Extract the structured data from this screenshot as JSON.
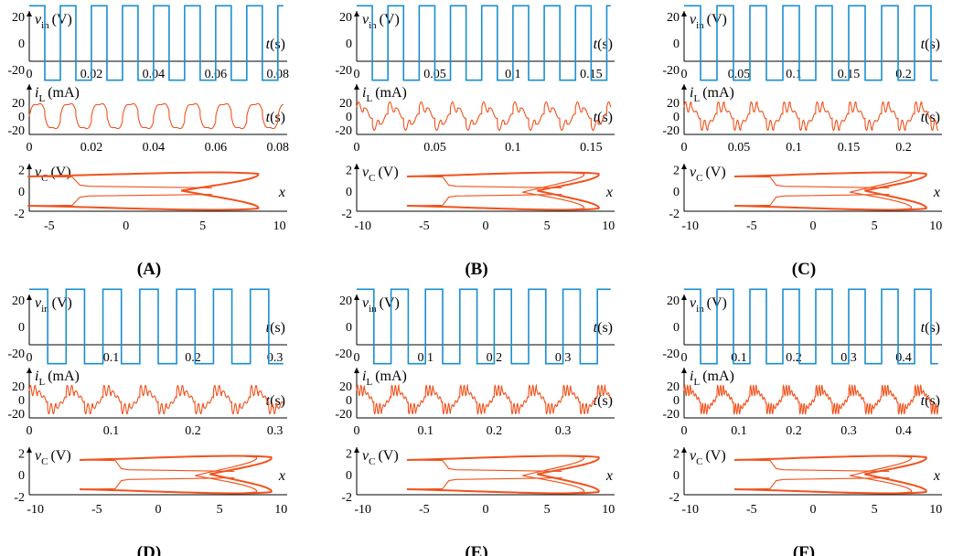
{
  "colors": {
    "vin": "#1a8fd0",
    "iL": "#f2521c",
    "vC": "#f2521c",
    "axis": "#000000"
  },
  "panels": [
    {
      "label": "(A)",
      "period": 0.01,
      "kind": "smooth",
      "nOsc": 0,
      "vin": {
        "xTicks": [
          "0",
          "0.02",
          "0.04",
          "0.06",
          "0.08"
        ],
        "xTickVals": [
          0,
          0.02,
          0.04,
          0.06,
          0.08
        ],
        "xmax": 0.083
      },
      "iL": {
        "xTicks": [
          "0",
          "0.02",
          "0.04",
          "0.06",
          "0.08"
        ],
        "xTickVals": [
          0,
          0.02,
          0.04,
          0.06,
          0.08
        ],
        "xmax": 0.083
      },
      "vC": {
        "xTicks": [
          "-5",
          "0",
          "5",
          "10"
        ],
        "xTickVals": [
          -5,
          0,
          5,
          10
        ],
        "xmin": -6.3,
        "xmax": 10.5
      }
    },
    {
      "label": "(B)",
      "period": 0.02,
      "kind": "osc",
      "nOsc": 2,
      "vin": {
        "xTicks": [
          "0",
          "0.05",
          "0.1",
          "0.15"
        ],
        "xTickVals": [
          0,
          0.05,
          0.1,
          0.15
        ],
        "xmax": 0.165
      },
      "iL": {
        "xTicks": [
          "0",
          "0.05",
          "0.1",
          "0.15"
        ],
        "xTickVals": [
          0,
          0.05,
          0.1,
          0.15
        ],
        "xmax": 0.165
      },
      "vC": {
        "xTicks": [
          "-10",
          "-5",
          "0",
          "5",
          "10"
        ],
        "xTickVals": [
          -10,
          -5,
          0,
          5,
          10
        ],
        "xmin": -10.5,
        "xmax": 10.5
      }
    },
    {
      "label": "(C)",
      "period": 0.03,
      "kind": "osc",
      "nOsc": 3,
      "vin": {
        "xTicks": [
          "0",
          "0.05",
          "0.1",
          "0.15",
          "0.2"
        ],
        "xTickVals": [
          0,
          0.05,
          0.1,
          0.15,
          0.2
        ],
        "xmax": 0.235
      },
      "iL": {
        "xTicks": [
          "0",
          "0.05",
          "0.1",
          "0.15",
          "0.2"
        ],
        "xTickVals": [
          0,
          0.05,
          0.1,
          0.15,
          0.2
        ],
        "xmax": 0.235
      },
      "vC": {
        "xTicks": [
          "-10",
          "-5",
          "0",
          "5",
          "10"
        ],
        "xTickVals": [
          -10,
          -5,
          0,
          5,
          10
        ],
        "xmin": -10.5,
        "xmax": 10.5
      }
    },
    {
      "label": "(D)",
      "period": 0.045,
      "kind": "osc",
      "nOsc": 4,
      "vin": {
        "xTicks": [
          "0",
          "0.1",
          "0.2",
          "0.3"
        ],
        "xTickVals": [
          0,
          0.1,
          0.2,
          0.3
        ],
        "xmax": 0.315
      },
      "iL": {
        "xTicks": [
          "0",
          "0.1",
          "0.2",
          "0.3"
        ],
        "xTickVals": [
          0,
          0.1,
          0.2,
          0.3
        ],
        "xmax": 0.315
      },
      "vC": {
        "xTicks": [
          "-10",
          "-5",
          "0",
          "5",
          "10"
        ],
        "xTickVals": [
          -10,
          -5,
          0,
          5,
          10
        ],
        "xmin": -10.5,
        "xmax": 10.5
      }
    },
    {
      "label": "(E)",
      "period": 0.05,
      "kind": "osc",
      "nOsc": 5,
      "vin": {
        "xTicks": [
          "0",
          "0.1",
          "0.2",
          "0.3"
        ],
        "xTickVals": [
          0,
          0.1,
          0.2,
          0.3
        ],
        "xmax": 0.375
      },
      "iL": {
        "xTicks": [
          "0",
          "0.1",
          "0.2",
          "0.3"
        ],
        "xTickVals": [
          0,
          0.1,
          0.2,
          0.3
        ],
        "xmax": 0.375
      },
      "vC": {
        "xTicks": [
          "-10",
          "-5",
          "0",
          "5",
          "10"
        ],
        "xTickVals": [
          -10,
          -5,
          0,
          5,
          10
        ],
        "xmin": -10.5,
        "xmax": 10.5
      }
    },
    {
      "label": "(F)",
      "period": 0.06,
      "kind": "osc",
      "nOsc": 6,
      "vin": {
        "xTicks": [
          "0",
          "0.1",
          "0.2",
          "0.3",
          "0.4"
        ],
        "xTickVals": [
          0,
          0.1,
          0.2,
          0.3,
          0.4
        ],
        "xmax": 0.47
      },
      "iL": {
        "xTicks": [
          "0",
          "0.1",
          "0.2",
          "0.3",
          "0.4"
        ],
        "xTickVals": [
          0,
          0.1,
          0.2,
          0.3,
          0.4
        ],
        "xmax": 0.47
      },
      "vC": {
        "xTicks": [
          "-10",
          "-5",
          "0",
          "5",
          "10"
        ],
        "xTickVals": [
          -10,
          -5,
          0,
          5,
          10
        ],
        "xmin": -10.5,
        "xmax": 10.5
      }
    }
  ],
  "chart_data": {
    "type": "line",
    "vin": {
      "ylabel_main": "v",
      "ylabel_sub": "in",
      "ylabel_unit": "(V)",
      "xlabel_main": "t",
      "xlabel_unit": "(s)",
      "yTicks": [
        "20",
        "0",
        "-20"
      ],
      "yTickVals": [
        20,
        0,
        -20
      ],
      "amplitude": 17
    },
    "iL": {
      "ylabel_main": "i",
      "ylabel_sub": "L",
      "ylabel_unit": "(mA)",
      "xlabel_main": "t",
      "xlabel_unit": "(s)",
      "yTicks": [
        "20",
        "0",
        "-20"
      ],
      "yTickVals": [
        20,
        0,
        -20
      ]
    },
    "vC": {
      "ylabel_main": "v",
      "ylabel_sub": "C",
      "ylabel_unit": "(V)",
      "xlabel_main": "x",
      "xlabel_unit": "",
      "yTicks": [
        "2",
        "0",
        "-2"
      ],
      "yTickVals": [
        2,
        0,
        -2
      ]
    }
  }
}
